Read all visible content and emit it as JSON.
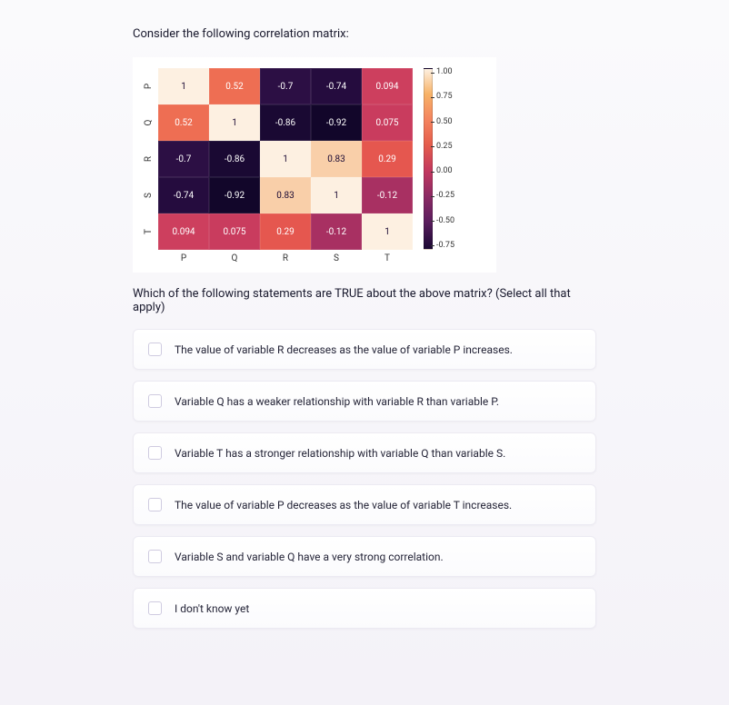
{
  "prompt": "Consider the following correlation matrix:",
  "question": "Which of the following statements are TRUE about the above matrix? (Select all that apply)",
  "heatmap": {
    "type": "heatmap",
    "row_labels": [
      "P",
      "Q",
      "R",
      "S",
      "T"
    ],
    "col_labels": [
      "P",
      "Q",
      "R",
      "S",
      "T"
    ],
    "cells": [
      [
        {
          "v": "1",
          "bg": "#fdf0e1",
          "fg": "#1a0933"
        },
        {
          "v": "0.52",
          "bg": "#ee6e53",
          "fg": "#ffffff"
        },
        {
          "v": "-0.7",
          "bg": "#2c0f44",
          "fg": "#ffffff"
        },
        {
          "v": "-0.74",
          "bg": "#250c3e",
          "fg": "#ffffff"
        },
        {
          "v": "0.094",
          "bg": "#cd3f5e",
          "fg": "#ffffff"
        }
      ],
      [
        {
          "v": "0.52",
          "bg": "#ee6e53",
          "fg": "#ffffff"
        },
        {
          "v": "1",
          "bg": "#fdf0e1",
          "fg": "#1a0933"
        },
        {
          "v": "-0.86",
          "bg": "#1a0933",
          "fg": "#ffffff"
        },
        {
          "v": "-0.92",
          "bg": "#12062a",
          "fg": "#ffffff"
        },
        {
          "v": "0.075",
          "bg": "#c93c5e",
          "fg": "#ffffff"
        }
      ],
      [
        {
          "v": "-0.7",
          "bg": "#2c0f44",
          "fg": "#ffffff"
        },
        {
          "v": "-0.86",
          "bg": "#1a0933",
          "fg": "#ffffff"
        },
        {
          "v": "1",
          "bg": "#fdf0e1",
          "fg": "#1a0933"
        },
        {
          "v": "0.83",
          "bg": "#f9cfa9",
          "fg": "#1a0933"
        },
        {
          "v": "0.29",
          "bg": "#e5574f",
          "fg": "#ffffff"
        }
      ],
      [
        {
          "v": "-0.74",
          "bg": "#250c3e",
          "fg": "#ffffff"
        },
        {
          "v": "-0.92",
          "bg": "#12062a",
          "fg": "#ffffff"
        },
        {
          "v": "0.83",
          "bg": "#f9cfa9",
          "fg": "#1a0933"
        },
        {
          "v": "1",
          "bg": "#fdf0e1",
          "fg": "#1a0933"
        },
        {
          "v": "-0.12",
          "bg": "#a83062",
          "fg": "#ffffff"
        }
      ],
      [
        {
          "v": "0.094",
          "bg": "#cd3f5e",
          "fg": "#ffffff"
        },
        {
          "v": "0.075",
          "bg": "#c93c5e",
          "fg": "#ffffff"
        },
        {
          "v": "0.29",
          "bg": "#e5574f",
          "fg": "#ffffff"
        },
        {
          "v": "-0.12",
          "bg": "#a83062",
          "fg": "#ffffff"
        },
        {
          "v": "1",
          "bg": "#fdf0e1",
          "fg": "#1a0933"
        }
      ]
    ],
    "colorbar_ticks": [
      "1.00",
      "0.75",
      "0.50",
      "0.25",
      "0.00",
      "-0.25",
      "-0.50",
      "-0.75"
    ],
    "label_fontsize": 10,
    "cell_fontsize": 10
  },
  "options": [
    {
      "text": "The value of variable R decreases as the value of variable P increases."
    },
    {
      "text": "Variable Q has a weaker relationship with variable R than variable P."
    },
    {
      "text": "Variable T has a stronger relationship with variable Q than variable S."
    },
    {
      "text": "The value of variable P decreases as the value of variable T increases."
    },
    {
      "text": "Variable S and variable Q have a very strong correlation."
    },
    {
      "text": "I don't know yet"
    }
  ]
}
